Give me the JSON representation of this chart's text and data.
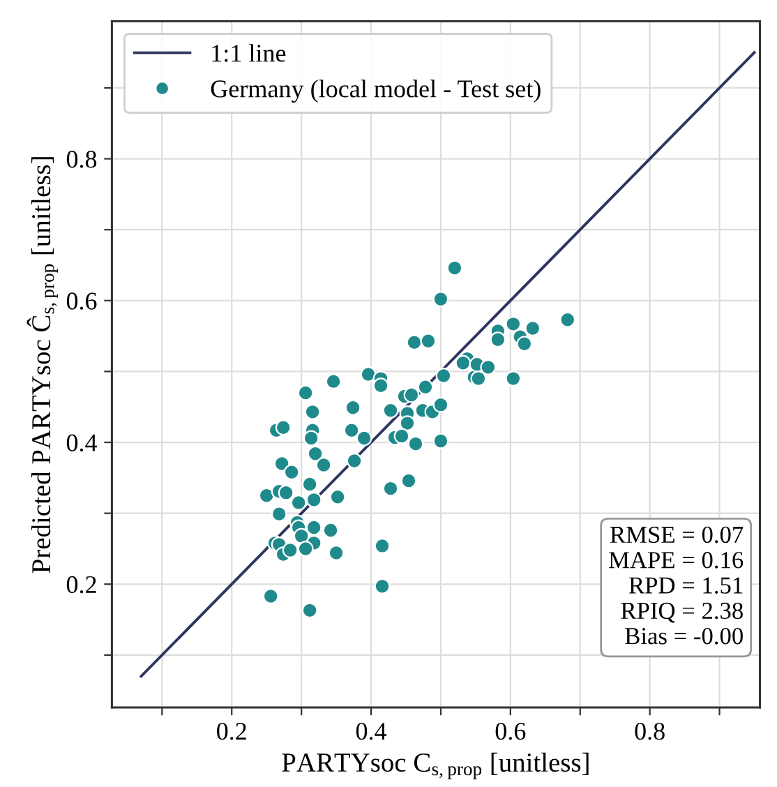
{
  "chart_data": {
    "type": "scatter",
    "xlabel": "PARTYsoc C$_{s,prop}$ [unitless]",
    "ylabel": "Predicted PARTYsoc Ĉ$_{s,prop}$ [unitless]",
    "xlim": [
      0.028,
      0.958
    ],
    "ylim": [
      0.026,
      0.994
    ],
    "xticks": [
      {
        "value": 0.1,
        "label": null
      },
      0.2,
      {
        "value": 0.3,
        "label": null
      },
      0.4,
      {
        "value": 0.5,
        "label": null
      },
      0.6,
      {
        "value": 0.7,
        "label": null
      },
      0.8,
      {
        "value": 0.9,
        "label": null
      }
    ],
    "yticks": [
      {
        "value": 0.1,
        "label": null
      },
      0.2,
      {
        "value": 0.3,
        "label": null
      },
      0.4,
      {
        "value": 0.5,
        "label": null
      },
      0.6,
      {
        "value": 0.7,
        "label": null
      },
      0.8,
      {
        "value": 0.9,
        "label": null
      }
    ],
    "grid": true,
    "legend": "top left",
    "marker": "circle",
    "series": [
      {
        "name": "1:1 line",
        "type": "line",
        "color": "#2e3560",
        "line_style": "solid",
        "marker": "none",
        "x": [
          0.07,
          0.95
        ],
        "values": [
          0.07,
          0.95
        ]
      },
      {
        "name": "Germany (local model - Test set)",
        "color": "#1f8a8c",
        "x": [
          0.52,
          0.5,
          0.462,
          0.482,
          0.538,
          0.548,
          0.504,
          0.396,
          0.414,
          0.414,
          0.346,
          0.306,
          0.316,
          0.374,
          0.448,
          0.458,
          0.478,
          0.474,
          0.488,
          0.5,
          0.428,
          0.452,
          0.452,
          0.264,
          0.274,
          0.316,
          0.314,
          0.372,
          0.39,
          0.434,
          0.444,
          0.464,
          0.5,
          0.32,
          0.332,
          0.272,
          0.286,
          0.376,
          0.312,
          0.25,
          0.268,
          0.278,
          0.296,
          0.352,
          0.428,
          0.454,
          0.268,
          0.318,
          0.294,
          0.296,
          0.318,
          0.342,
          0.3,
          0.262,
          0.268,
          0.318,
          0.274,
          0.284,
          0.306,
          0.35,
          0.416,
          0.416,
          0.256,
          0.312,
          0.682,
          0.604,
          0.632,
          0.582,
          0.582,
          0.614,
          0.62,
          0.532,
          0.552,
          0.568,
          0.554,
          0.604
        ],
        "values": [
          0.646,
          0.602,
          0.541,
          0.543,
          0.518,
          0.492,
          0.494,
          0.496,
          0.49,
          0.48,
          0.486,
          0.47,
          0.443,
          0.449,
          0.465,
          0.467,
          0.478,
          0.445,
          0.443,
          0.453,
          0.445,
          0.441,
          0.427,
          0.417,
          0.421,
          0.417,
          0.406,
          0.417,
          0.406,
          0.407,
          0.409,
          0.398,
          0.402,
          0.384,
          0.368,
          0.37,
          0.358,
          0.374,
          0.341,
          0.325,
          0.331,
          0.329,
          0.315,
          0.323,
          0.335,
          0.346,
          0.299,
          0.319,
          0.287,
          0.28,
          0.28,
          0.276,
          0.268,
          0.258,
          0.256,
          0.258,
          0.242,
          0.248,
          0.25,
          0.244,
          0.254,
          0.197,
          0.183,
          0.163,
          0.573,
          0.567,
          0.561,
          0.557,
          0.545,
          0.549,
          0.539,
          0.512,
          0.51,
          0.506,
          0.49,
          0.49
        ]
      }
    ],
    "annotations": [
      "RMSE = 0.07\nMAPE = 0.16\nRPD = 1.51\nRPIQ = 2.38\nBias = -0.00"
    ]
  }
}
